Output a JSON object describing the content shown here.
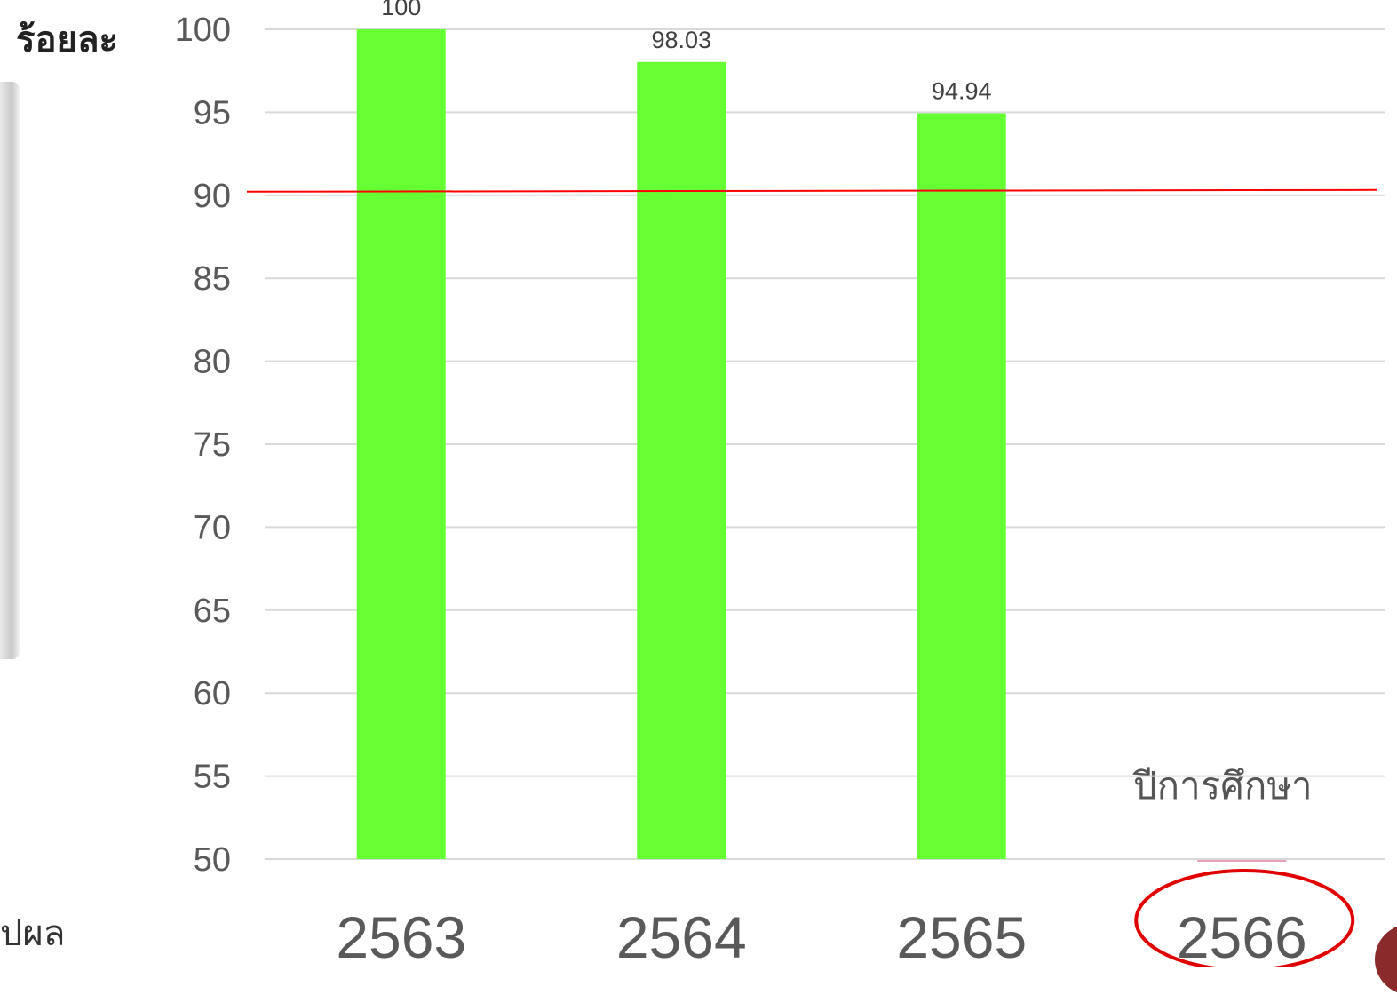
{
  "chart_data": {
    "type": "bar",
    "categories": [
      "2563",
      "2564",
      "2565",
      "2566"
    ],
    "values": [
      100,
      98.03,
      94.94,
      null
    ],
    "data_labels": [
      "100",
      "98.03",
      "94.94",
      ""
    ],
    "ylabel": "ร้อยละ",
    "xlabel": "ปีการศึกษา",
    "ylim": [
      50,
      100
    ],
    "yticks": [
      "100",
      "95",
      "90",
      "85",
      "80",
      "75",
      "70",
      "65",
      "60",
      "55",
      "50"
    ],
    "target_value": 90,
    "grid": true,
    "highlighted_category": "2566",
    "colors": {
      "bar": "#66ff33",
      "target_line": "#ff0000",
      "grid": "#d9d9d9",
      "highlight_ellipse": "#e00000"
    }
  },
  "side_text_fragment": "ปผล"
}
